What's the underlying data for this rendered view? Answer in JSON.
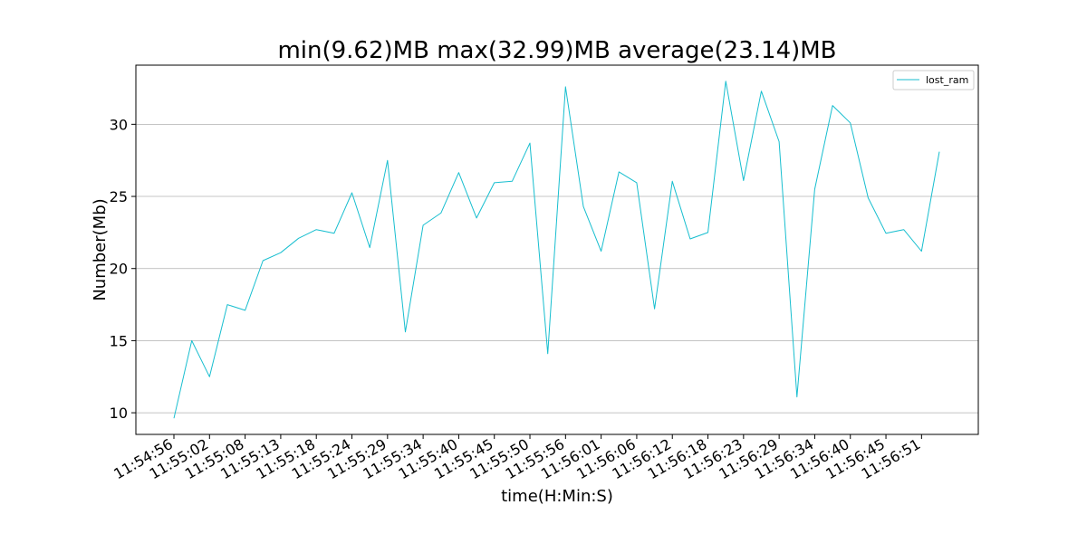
{
  "chart_data": {
    "type": "line",
    "title": "min(9.62)MB max(32.99)MB average(23.14)MB",
    "xlabel": "time(H:Min:S)",
    "ylabel": "Number(Mb)",
    "ylim": [
      8.5,
      34.1
    ],
    "yticks": [
      10,
      15,
      20,
      25,
      30
    ],
    "grid": "horizontal",
    "legend_position": "top-right",
    "x_tick_labels": [
      "11:54:56",
      "11:55:02",
      "11:55:08",
      "11:55:13",
      "11:55:18",
      "11:55:24",
      "11:55:29",
      "11:55:34",
      "11:55:40",
      "11:55:45",
      "11:55:50",
      "11:55:56",
      "11:56:01",
      "11:56:06",
      "11:56:12",
      "11:56:18",
      "11:56:23",
      "11:56:29",
      "11:56:34",
      "11:56:40",
      "11:56:45",
      "11:56:51"
    ],
    "series": [
      {
        "name": "lost_ram",
        "color": "#17becf",
        "values": [
          9.62,
          15.0,
          12.5,
          17.5,
          17.1,
          20.55,
          21.1,
          22.1,
          22.7,
          22.45,
          25.25,
          21.45,
          27.5,
          15.6,
          23.0,
          23.85,
          26.65,
          23.5,
          25.95,
          26.05,
          28.7,
          14.1,
          32.6,
          24.3,
          21.2,
          26.7,
          25.95,
          17.2,
          26.05,
          22.05,
          22.5,
          32.99,
          26.1,
          32.3,
          28.8,
          11.1,
          25.5,
          31.3,
          30.1,
          24.9,
          22.45,
          22.7,
          21.2,
          28.1
        ]
      }
    ]
  }
}
